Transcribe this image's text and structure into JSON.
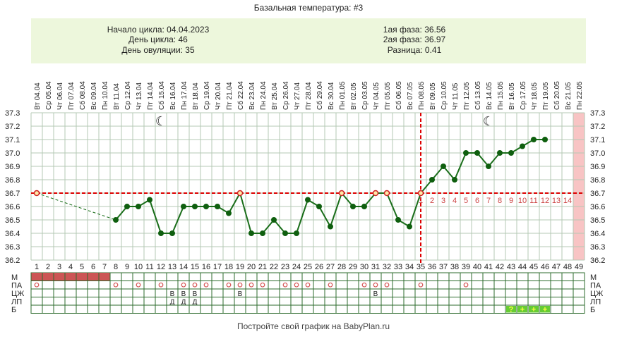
{
  "chart_data": {
    "type": "line",
    "title": "Базальная температура: #3",
    "info": {
      "left": [
        "Начало цикла: 04.04.2023",
        "День цикла: 46",
        "День овуляции: 35"
      ],
      "right": [
        "1ая фаза: 36.56",
        "2ая фаза: 36.97",
        "Разница: 0.41"
      ]
    },
    "footer": "Постройте свой график на BabyPlan.ru",
    "ylim": [
      36.2,
      37.3
    ],
    "y_ticks": [
      "37.3",
      "37.2",
      "37.1",
      "37.0",
      "36.9",
      "36.8",
      "36.7",
      "36.6",
      "36.5",
      "36.4",
      "36.3",
      "36.2"
    ],
    "cover_line": 36.7,
    "ovulation_day": 35,
    "moon_days": [
      12,
      41
    ],
    "dates": [
      "Вт 04.04",
      "Ср 05.04",
      "Чт 06.04",
      "Пт 07.04",
      "Сб 08.04",
      "Вс 09.04",
      "Пн 10.04",
      "Вт 11.04",
      "Ср 12.04",
      "Чт 13.04",
      "Пт 14.04",
      "Сб 15.04",
      "Вс 16.04",
      "Пн 17.04",
      "Вт 18.04",
      "Ср 19.04",
      "Чт 20.04",
      "Пт 21.04",
      "Сб 22.04",
      "Вс 23.04",
      "Пн 24.04",
      "Вт 25.04",
      "Ср 26.04",
      "Чт 27.04",
      "Пт 28.04",
      "Сб 29.04",
      "Вс 30.04",
      "Пн 01.05",
      "Вт 02.05",
      "Ср 03.05",
      "Чт 04.05",
      "Пт 05.05",
      "Сб 06.05",
      "Вс 07.05",
      "Пн 08.05",
      "Вт 09.05",
      "Ср 10.05",
      "Чт 11.05",
      "Пт 12.05",
      "Сб 13.05",
      "Вс 14.05",
      "Пн 15.05",
      "Вт 16.05",
      "Ср 17.05",
      "Чт 18.05",
      "Пт 19.05",
      "Сб 20.05",
      "Вс 21.05",
      "Пн 22.05"
    ],
    "days": [
      1,
      2,
      3,
      4,
      5,
      6,
      7,
      8,
      9,
      10,
      11,
      12,
      13,
      14,
      15,
      16,
      17,
      18,
      19,
      20,
      21,
      22,
      23,
      24,
      25,
      26,
      27,
      28,
      29,
      30,
      31,
      32,
      33,
      34,
      35,
      36,
      37,
      38,
      39,
      40,
      41,
      42,
      43,
      44,
      45,
      46,
      47,
      48,
      49
    ],
    "temps": [
      36.7,
      null,
      null,
      null,
      null,
      null,
      null,
      36.5,
      36.6,
      36.6,
      36.65,
      36.4,
      36.4,
      36.6,
      36.6,
      36.6,
      36.6,
      36.55,
      36.7,
      36.4,
      36.4,
      36.5,
      36.4,
      36.4,
      36.65,
      36.6,
      36.45,
      36.7,
      36.6,
      36.6,
      36.7,
      36.7,
      36.5,
      36.45,
      36.7,
      36.8,
      36.9,
      36.8,
      37.0,
      37.0,
      36.9,
      37.0,
      37.0,
      37.05,
      37.1,
      37.1,
      null,
      null,
      null
    ],
    "luteal_labels": [
      "1",
      "2",
      "3",
      "4",
      "5",
      "6",
      "7",
      "8",
      "9",
      "10",
      "11",
      "12",
      "13",
      "14"
    ],
    "rows": [
      {
        "label": "М",
        "cells": {
          "1": "fill",
          "2": "fill",
          "3": "fill",
          "4": "fill",
          "5": "fill",
          "6": "fill",
          "7": "fill"
        }
      },
      {
        "label": "ПА",
        "cells": {
          "1": "o",
          "8": "o",
          "10": "o",
          "12": "o",
          "14": "o",
          "15": "o",
          "16": "o",
          "18": "o",
          "19": "o",
          "20": "o",
          "21": "o",
          "23": "o",
          "24": "o",
          "25": "o",
          "27": "o",
          "30": "o",
          "31": "o",
          "32": "o",
          "35": "o",
          "39": "o"
        }
      },
      {
        "label": "ЦЖ",
        "cells": {
          "13": "В",
          "14": "В",
          "15": "В",
          "19": "В",
          "31": "В"
        }
      },
      {
        "label": "ЛП",
        "cells": {
          "13": "Д",
          "14": "Д",
          "15": "Д"
        }
      },
      {
        "label": "Б",
        "cells": {
          "43": "?",
          "44": "+",
          "45": "+",
          "46": "+"
        }
      }
    ],
    "colors": {
      "line": "#1a6e1a",
      "marker": "#0f5f0f",
      "cover": "#dd0000",
      "grid": "#b4c8b4",
      "info_bg": "#edf7dc",
      "menses": "#cc5555",
      "luteal_label": "#cc4444",
      "test_fill": "#66cc33",
      "test_text": "#ffff44",
      "pink_band": "#f8c4c4"
    }
  }
}
